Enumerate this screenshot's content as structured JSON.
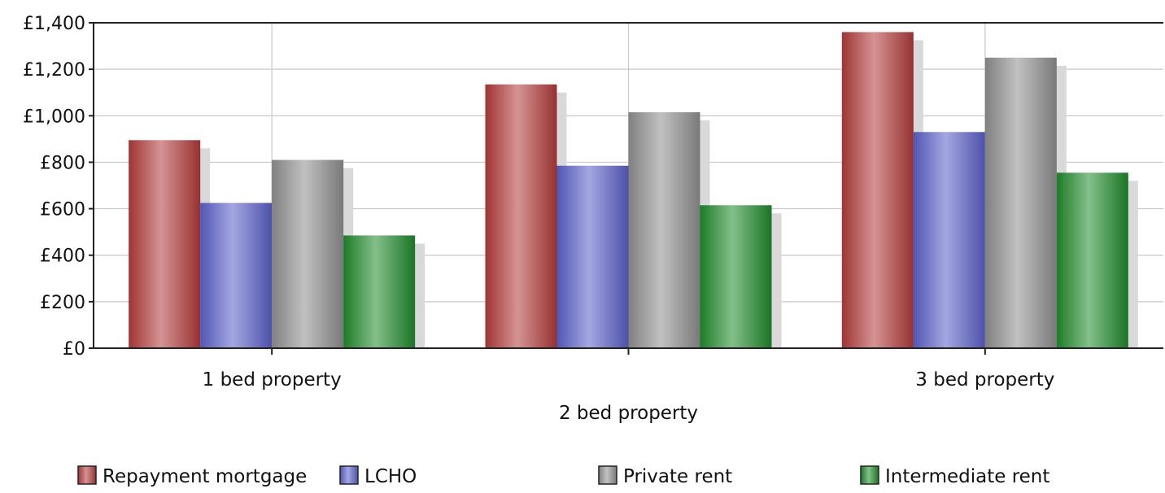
{
  "chart_data": {
    "type": "bar",
    "categories": [
      "1 bed property",
      "2 bed property",
      "3 bed property"
    ],
    "series": [
      {
        "name": "Repayment mortgage",
        "values": [
          895,
          1135,
          1360
        ],
        "color": "#b23a3a"
      },
      {
        "name": "LCHO",
        "values": [
          625,
          785,
          930
        ],
        "color": "#5a5fc8"
      },
      {
        "name": "Private rent",
        "values": [
          810,
          1015,
          1250
        ],
        "color": "#8e8e8e"
      },
      {
        "name": "Intermediate rent",
        "values": [
          485,
          615,
          755
        ],
        "color": "#1f8a2a"
      }
    ],
    "yticks": [
      "£0",
      "£200",
      "£400",
      "£600",
      "£800",
      "£1,000",
      "£1,200",
      "£1,400"
    ],
    "ylim": [
      0,
      1400
    ],
    "title": "",
    "xlabel": "",
    "ylabel": "",
    "grid": true,
    "legend_position": "bottom"
  }
}
